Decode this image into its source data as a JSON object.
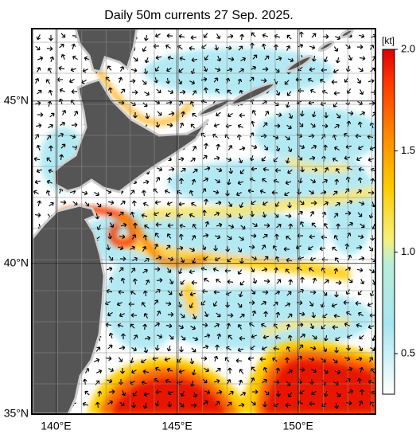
{
  "title": "Daily 50m currents 27 Sep. 2025.",
  "map": {
    "xlim": [
      139,
      153.2
    ],
    "ylim": [
      35,
      47.1
    ],
    "xticks": [
      {
        "value": 140,
        "label": "140°E"
      },
      {
        "value": 145,
        "label": "145°E"
      },
      {
        "value": 150,
        "label": "150°E"
      }
    ],
    "yticks": [
      {
        "value": 35,
        "label": "35°N"
      },
      {
        "value": 40,
        "label": "40°N"
      },
      {
        "value": 45,
        "label": "45°N"
      }
    ]
  },
  "colorbar": {
    "unit": "[kt]",
    "lim": [
      0.3,
      2.0
    ],
    "ticks": [
      0.5,
      {
        "value": 1,
        "label": "1.0"
      },
      1.5,
      {
        "value": 2,
        "label": "2.0"
      }
    ]
  }
}
